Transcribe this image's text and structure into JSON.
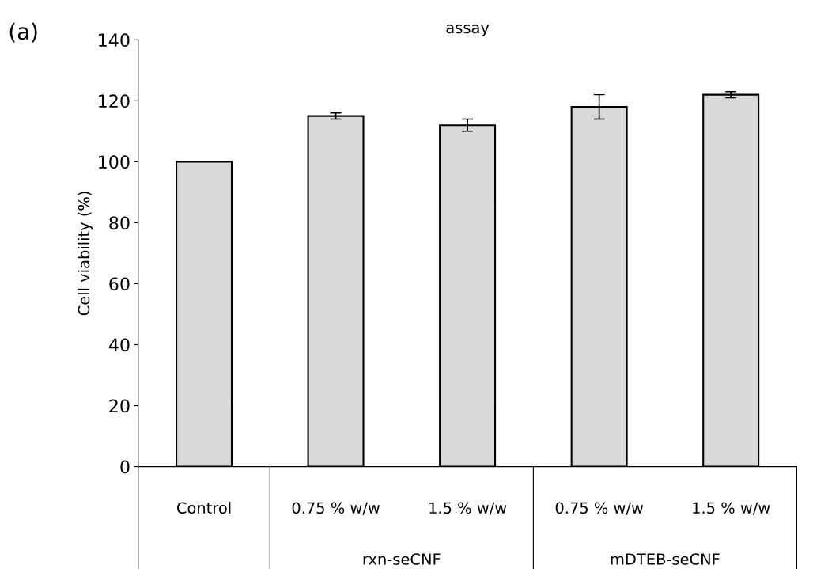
{
  "chart_data": {
    "type": "bar",
    "title": "assay",
    "ylabel": "Cell viability (%)",
    "categories": [
      "Control",
      "0.75 % w/w",
      "1.5 % w/w",
      "0.75 % w/w",
      "1.5 % w/w"
    ],
    "values": [
      100,
      115,
      112,
      118,
      122
    ],
    "errors": [
      null,
      1,
      2,
      4,
      1
    ],
    "color": "#d9d9d9",
    "ylim": [
      0,
      140
    ],
    "yticks": [
      0,
      20,
      40,
      60,
      80,
      100,
      120,
      140
    ],
    "grid": false,
    "legend": false,
    "annotations": [
      "(a)",
      "rxn-seCNF",
      "mDTEB-seCNF"
    ]
  }
}
